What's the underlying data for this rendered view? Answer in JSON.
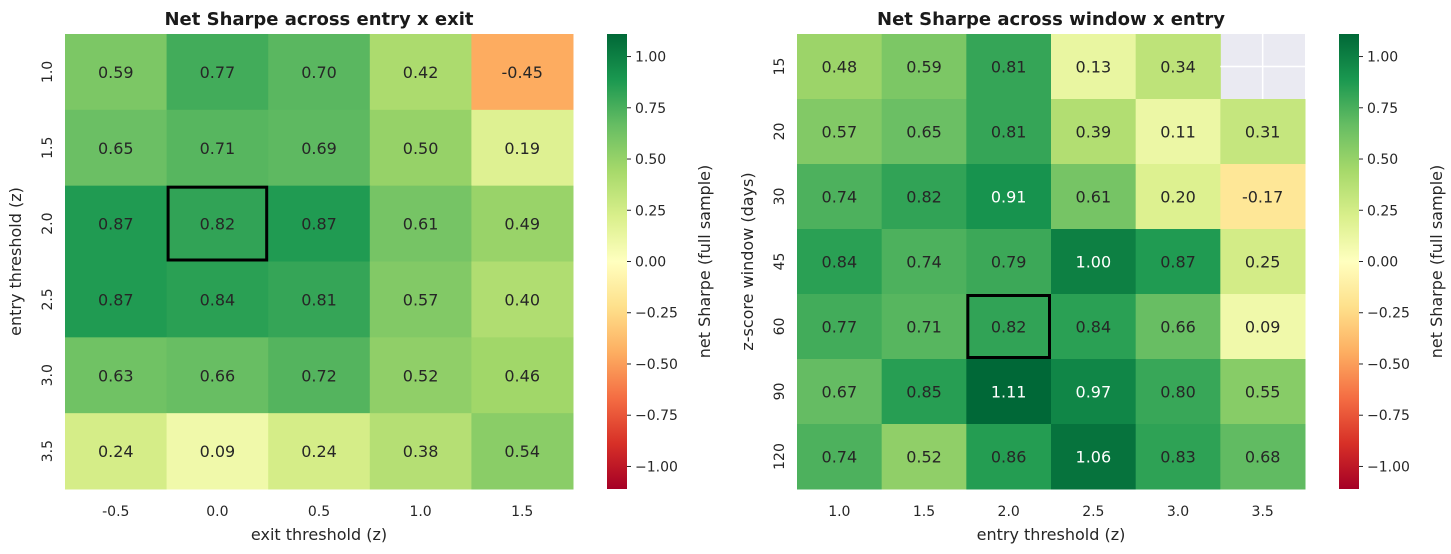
{
  "chart_data": [
    {
      "type": "heatmap",
      "title": "Net Sharpe across entry x exit",
      "xlabel": "exit threshold (z)",
      "ylabel": "entry threshold (z)",
      "x_categories": [
        "-0.5",
        "0.0",
        "0.5",
        "1.0",
        "1.5"
      ],
      "y_categories": [
        "1.0",
        "1.5",
        "2.0",
        "2.5",
        "3.0",
        "3.5"
      ],
      "values": [
        [
          0.59,
          0.77,
          0.7,
          0.42,
          -0.45
        ],
        [
          0.65,
          0.71,
          0.69,
          0.5,
          0.19
        ],
        [
          0.87,
          0.82,
          0.87,
          0.61,
          0.49
        ],
        [
          0.87,
          0.84,
          0.81,
          0.57,
          0.4
        ],
        [
          0.63,
          0.66,
          0.72,
          0.52,
          0.46
        ],
        [
          0.24,
          0.09,
          0.24,
          0.38,
          0.54
        ]
      ],
      "labels": [
        [
          "0.59",
          "0.77",
          "0.70",
          "0.42",
          "-0.45"
        ],
        [
          "0.65",
          "0.71",
          "0.69",
          "0.50",
          "0.19"
        ],
        [
          "0.87",
          "0.82",
          "0.87",
          "0.61",
          "0.49"
        ],
        [
          "0.87",
          "0.84",
          "0.81",
          "0.57",
          "0.40"
        ],
        [
          "0.63",
          "0.66",
          "0.72",
          "0.52",
          "0.46"
        ],
        [
          "0.24",
          "0.09",
          "0.24",
          "0.38",
          "0.54"
        ]
      ],
      "highlight": {
        "row": 2,
        "col": 1
      },
      "colorbar": {
        "label": "net Sharpe (full sample)",
        "range": [
          -1.11,
          1.11
        ],
        "ticks": [
          1.0,
          0.75,
          0.5,
          0.25,
          0.0,
          -0.25,
          -0.5,
          -0.75,
          -1.0
        ],
        "tick_labels": [
          "1.00",
          "0.75",
          "0.50",
          "0.25",
          "0.00",
          "−0.25",
          "−0.50",
          "−0.75",
          "−1.00"
        ]
      },
      "colormap": "RdYlGn"
    },
    {
      "type": "heatmap",
      "title": "Net Sharpe across window x entry",
      "xlabel": "entry threshold (z)",
      "ylabel": "z-score window (days)",
      "x_categories": [
        "1.0",
        "1.5",
        "2.0",
        "2.5",
        "3.0",
        "3.5"
      ],
      "y_categories": [
        "15",
        "20",
        "30",
        "45",
        "60",
        "90",
        "120"
      ],
      "values": [
        [
          0.48,
          0.59,
          0.81,
          0.13,
          0.34,
          null
        ],
        [
          0.57,
          0.65,
          0.81,
          0.39,
          0.11,
          0.31
        ],
        [
          0.74,
          0.82,
          0.91,
          0.61,
          0.2,
          -0.17
        ],
        [
          0.84,
          0.74,
          0.79,
          1.0,
          0.87,
          0.25
        ],
        [
          0.77,
          0.71,
          0.82,
          0.84,
          0.66,
          0.09
        ],
        [
          0.67,
          0.85,
          1.11,
          0.97,
          0.8,
          0.55
        ],
        [
          0.74,
          0.52,
          0.86,
          1.06,
          0.83,
          0.68
        ]
      ],
      "labels": [
        [
          "0.48",
          "0.59",
          "0.81",
          "0.13",
          "0.34",
          ""
        ],
        [
          "0.57",
          "0.65",
          "0.81",
          "0.39",
          "0.11",
          "0.31"
        ],
        [
          "0.74",
          "0.82",
          "0.91",
          "0.61",
          "0.20",
          "-0.17"
        ],
        [
          "0.84",
          "0.74",
          "0.79",
          "1.00",
          "0.87",
          "0.25"
        ],
        [
          "0.77",
          "0.71",
          "0.82",
          "0.84",
          "0.66",
          "0.09"
        ],
        [
          "0.67",
          "0.85",
          "1.11",
          "0.97",
          "0.80",
          "0.55"
        ],
        [
          "0.74",
          "0.52",
          "0.86",
          "1.06",
          "0.83",
          "0.68"
        ]
      ],
      "highlight": {
        "row": 4,
        "col": 2
      },
      "colorbar": {
        "label": "net Sharpe (full sample)",
        "range": [
          -1.11,
          1.11
        ],
        "ticks": [
          1.0,
          0.75,
          0.5,
          0.25,
          0.0,
          -0.25,
          -0.5,
          -0.75,
          -1.0
        ],
        "tick_labels": [
          "1.00",
          "0.75",
          "0.50",
          "0.25",
          "0.00",
          "−0.25",
          "−0.50",
          "−0.75",
          "−1.00"
        ]
      },
      "colormap": "RdYlGn"
    }
  ]
}
